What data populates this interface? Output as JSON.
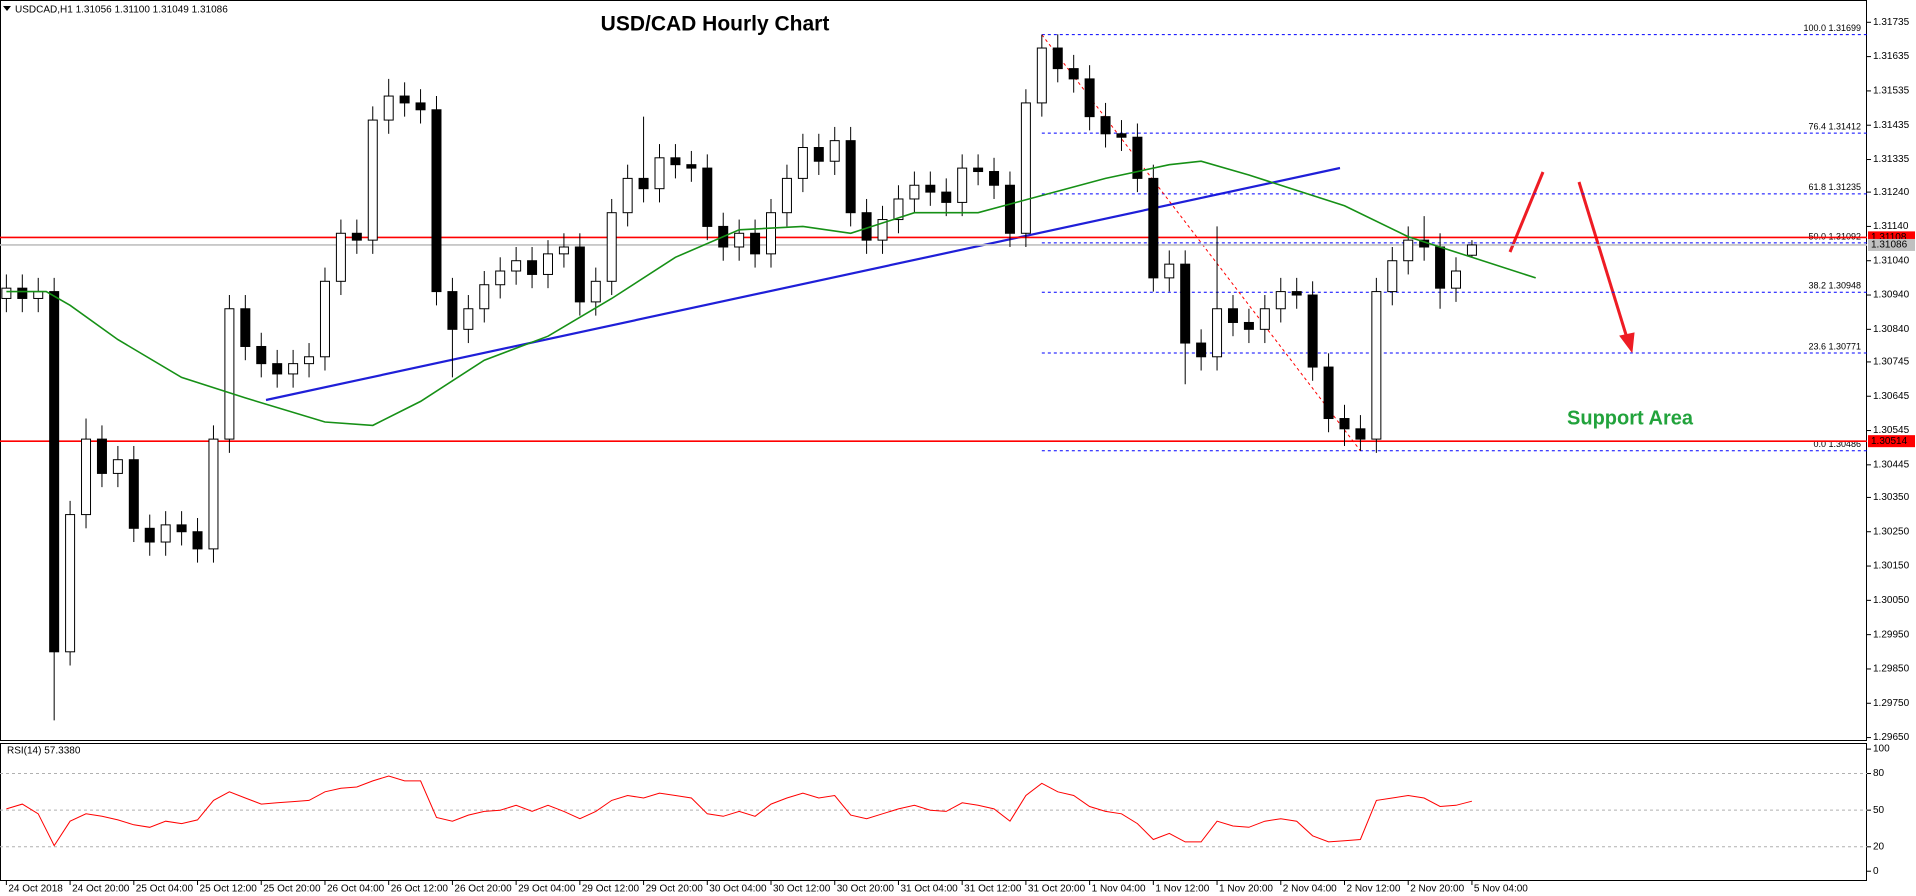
{
  "chart_data": [
    {
      "type": "candlestick",
      "title": "USD/CAD Hourly Chart",
      "symbol_info": "USDCAD,H1  1.31056 1.31100 1.31049 1.31086",
      "annotation": "Support Area",
      "candle_colors": {
        "up": "#ffffff",
        "down": "#000000",
        "outline": "#000000"
      },
      "xlim": [
        -0.8,
        233.6
      ],
      "ylim": [
        1.2964,
        1.318
      ],
      "x": [
        0,
        2,
        4,
        6,
        8,
        10,
        12,
        14,
        16,
        18,
        20,
        22,
        24,
        26,
        28,
        30,
        32,
        34,
        36,
        38,
        40,
        42,
        44,
        46,
        48,
        50,
        52,
        54,
        56,
        58,
        60,
        62,
        64,
        66,
        68,
        70,
        72,
        74,
        76,
        78,
        80,
        82,
        84,
        86,
        88,
        90,
        92,
        94,
        96,
        98,
        100,
        102,
        104,
        106,
        108,
        110,
        112,
        114,
        116,
        118,
        120,
        122,
        124,
        126,
        128,
        130,
        132,
        134,
        136,
        138,
        140,
        142,
        144,
        146,
        148,
        150,
        152,
        154,
        156,
        158,
        160,
        162,
        164,
        166,
        168,
        170,
        172,
        174,
        176,
        178,
        180,
        182,
        184
      ],
      "open": [
        1.3093,
        1.3096,
        1.3093,
        1.3095,
        1.299,
        1.303,
        1.3052,
        1.3042,
        1.3046,
        1.3026,
        1.3022,
        1.3027,
        1.3025,
        1.302,
        1.3052,
        1.309,
        1.3079,
        1.3074,
        1.3071,
        1.3074,
        1.3076,
        1.3098,
        1.3112,
        1.311,
        1.3145,
        1.3152,
        1.315,
        1.3148,
        1.3095,
        1.3084,
        1.309,
        1.3097,
        1.3101,
        1.3104,
        1.31,
        1.3106,
        1.3108,
        1.3092,
        1.3098,
        1.3118,
        1.3128,
        1.3125,
        1.3134,
        1.3132,
        1.3131,
        1.3114,
        1.3108,
        1.3112,
        1.3106,
        1.3118,
        1.3128,
        1.3137,
        1.3133,
        1.3139,
        1.3118,
        1.311,
        1.3116,
        1.3122,
        1.3126,
        1.3124,
        1.3121,
        1.3131,
        1.313,
        1.3126,
        1.3112,
        1.315,
        1.3166,
        1.316,
        1.3157,
        1.3146,
        1.3141,
        1.314,
        1.3128,
        1.3099,
        1.3103,
        1.308,
        1.3076,
        1.309,
        1.3086,
        1.3084,
        1.309,
        1.3095,
        1.3094,
        1.3073,
        1.3058,
        1.3055,
        1.3052,
        1.3095,
        1.3104,
        1.311,
        1.3108,
        1.3096,
        1.31056
      ],
      "high": [
        1.31,
        1.31,
        1.3099,
        1.3099,
        1.3034,
        1.3058,
        1.3056,
        1.305,
        1.305,
        1.303,
        1.3031,
        1.3031,
        1.3029,
        1.3056,
        1.3094,
        1.3094,
        1.3083,
        1.3078,
        1.3078,
        1.308,
        1.3102,
        1.3116,
        1.3116,
        1.3149,
        1.3157,
        1.3156,
        1.3154,
        1.3152,
        1.3099,
        1.3094,
        1.3101,
        1.3105,
        1.3108,
        1.3108,
        1.311,
        1.3112,
        1.3112,
        1.3102,
        1.3122,
        1.3132,
        1.3146,
        1.3138,
        1.3138,
        1.3136,
        1.3135,
        1.3118,
        1.3116,
        1.3116,
        1.3122,
        1.3132,
        1.3141,
        1.3141,
        1.3143,
        1.3143,
        1.3122,
        1.312,
        1.3126,
        1.313,
        1.313,
        1.3128,
        1.3135,
        1.3135,
        1.3134,
        1.313,
        1.3154,
        1.31699,
        1.317,
        1.3164,
        1.3161,
        1.315,
        1.3145,
        1.3144,
        1.3132,
        1.3107,
        1.3107,
        1.3084,
        1.3114,
        1.3094,
        1.309,
        1.3094,
        1.3099,
        1.3099,
        1.3098,
        1.3077,
        1.3062,
        1.3059,
        1.3099,
        1.3108,
        1.3114,
        1.3117,
        1.3112,
        1.3105,
        1.311
      ],
      "low": [
        1.3089,
        1.3089,
        1.3089,
        1.297,
        1.2986,
        1.3026,
        1.3038,
        1.3038,
        1.3022,
        1.3018,
        1.3018,
        1.3021,
        1.3016,
        1.3016,
        1.3048,
        1.3075,
        1.307,
        1.3067,
        1.3067,
        1.307,
        1.3072,
        1.3094,
        1.3106,
        1.3106,
        1.3141,
        1.3146,
        1.3144,
        1.3091,
        1.307,
        1.308,
        1.3086,
        1.3093,
        1.3097,
        1.3096,
        1.3096,
        1.3102,
        1.3088,
        1.3088,
        1.3094,
        1.3114,
        1.3121,
        1.3121,
        1.3128,
        1.3127,
        1.311,
        1.3104,
        1.3104,
        1.3102,
        1.3102,
        1.3114,
        1.3124,
        1.3129,
        1.3129,
        1.3114,
        1.3106,
        1.3106,
        1.3112,
        1.3118,
        1.312,
        1.3117,
        1.3117,
        1.3126,
        1.3122,
        1.3108,
        1.3108,
        1.3146,
        1.3156,
        1.3153,
        1.3142,
        1.3137,
        1.3136,
        1.3124,
        1.3095,
        1.3095,
        1.3068,
        1.3072,
        1.3072,
        1.3082,
        1.308,
        1.308,
        1.3086,
        1.309,
        1.3069,
        1.3054,
        1.305,
        1.30486,
        1.3048,
        1.3091,
        1.31,
        1.3104,
        1.309,
        1.3092,
        1.31049
      ],
      "close": [
        1.3096,
        1.3093,
        1.3095,
        1.299,
        1.303,
        1.3052,
        1.3042,
        1.3046,
        1.3026,
        1.3022,
        1.3027,
        1.3025,
        1.302,
        1.3052,
        1.309,
        1.3079,
        1.3074,
        1.3071,
        1.3074,
        1.3076,
        1.3098,
        1.3112,
        1.311,
        1.3145,
        1.3152,
        1.315,
        1.3148,
        1.3095,
        1.3084,
        1.309,
        1.3097,
        1.3101,
        1.3104,
        1.31,
        1.3106,
        1.3108,
        1.3092,
        1.3098,
        1.3118,
        1.3128,
        1.3125,
        1.3134,
        1.3132,
        1.3131,
        1.3114,
        1.3108,
        1.3112,
        1.3106,
        1.3118,
        1.3128,
        1.3137,
        1.3133,
        1.3139,
        1.3118,
        1.311,
        1.3116,
        1.3122,
        1.3126,
        1.3124,
        1.3121,
        1.3131,
        1.313,
        1.3126,
        1.3112,
        1.315,
        1.3166,
        1.316,
        1.3157,
        1.3146,
        1.3141,
        1.314,
        1.3128,
        1.3099,
        1.3103,
        1.308,
        1.3076,
        1.309,
        1.3086,
        1.3084,
        1.309,
        1.3095,
        1.3094,
        1.3073,
        1.3058,
        1.3055,
        1.3052,
        1.3095,
        1.3104,
        1.311,
        1.3108,
        1.3096,
        1.3101,
        1.31086
      ],
      "moving_average": {
        "color": "#169016",
        "x": [
          0,
          5,
          8,
          14,
          22,
          30,
          40,
          46,
          52,
          60,
          68,
          76,
          84,
          92,
          100,
          106,
          114,
          122,
          130,
          138,
          146,
          150,
          156,
          164,
          168,
          176,
          184,
          192
        ],
        "values": [
          1.3095,
          1.3095,
          1.3091,
          1.3081,
          1.307,
          1.3064,
          1.3057,
          1.3056,
          1.3063,
          1.3075,
          1.3082,
          1.3093,
          1.3105,
          1.3113,
          1.3114,
          1.3112,
          1.3118,
          1.3118,
          1.3123,
          1.3128,
          1.3132,
          1.3133,
          1.3129,
          1.3123,
          1.312,
          1.3111,
          1.3105,
          1.3099
        ]
      },
      "levels": [
        {
          "value": 1.31108,
          "color": "#ff0000"
        },
        {
          "value": 1.30514,
          "color": "#ff0000"
        },
        {
          "value": 1.31086,
          "color": "#c0c0c0"
        }
      ],
      "fibonacci": {
        "x": [
          130,
          170
        ],
        "color": "#0000ff",
        "levels": [
          {
            "label": "100.0 1.31699",
            "value": 1.31699
          },
          {
            "label": "76.4 1.31412",
            "value": 1.31412
          },
          {
            "label": "61.8 1.31235",
            "value": 1.31235
          },
          {
            "label": "50.0 1.31092",
            "value": 1.31092
          },
          {
            "label": "38.2 1.30948",
            "value": 1.30948
          },
          {
            "label": "23.6 1.30771",
            "value": 1.30771
          },
          {
            "label": "0.0 1.30486",
            "value": 1.30486
          }
        ]
      },
      "yticks": [
        1.31735,
        1.31635,
        1.31535,
        1.31435,
        1.31335,
        {
          "value": 1.3124,
          "label": "1.31240"
        },
        {
          "value": 1.3114,
          "label": "1.31140"
        },
        {
          "value": 1.3104,
          "label": "1.31040"
        },
        {
          "value": 1.3094,
          "label": "1.30940"
        },
        {
          "value": 1.3084,
          "label": "1.30840"
        },
        1.30745,
        1.30645,
        1.30545,
        1.30445,
        {
          "value": 1.3035,
          "label": "1.30350"
        },
        {
          "value": 1.3025,
          "label": "1.30250"
        },
        {
          "value": 1.3015,
          "label": "1.30150"
        },
        {
          "value": 1.3005,
          "label": "1.30050"
        },
        {
          "value": 1.2995,
          "label": "1.29950"
        },
        {
          "value": 1.2985,
          "label": "1.29850"
        },
        {
          "value": 1.2975,
          "label": "1.29750"
        },
        {
          "value": 1.2965,
          "label": "1.29650"
        }
      ],
      "xticks": [
        {
          "value": 0,
          "label": "24 Oct 2018"
        },
        {
          "value": 8,
          "label": "24 Oct 20:00"
        },
        {
          "value": 16,
          "label": "25 Oct 04:00"
        },
        {
          "value": 24,
          "label": "25 Oct 12:00"
        },
        {
          "value": 32,
          "label": "25 Oct 20:00"
        },
        {
          "value": 40,
          "label": "26 Oct 04:00"
        },
        {
          "value": 48,
          "label": "26 Oct 12:00"
        },
        {
          "value": 56,
          "label": "26 Oct 20:00"
        },
        {
          "value": 64,
          "label": "29 Oct 04:00"
        },
        {
          "value": 72,
          "label": "29 Oct 12:00"
        },
        {
          "value": 80,
          "label": "29 Oct 20:00"
        },
        {
          "value": 88,
          "label": "30 Oct 04:00"
        },
        {
          "value": 96,
          "label": "30 Oct 12:00"
        },
        {
          "value": 104,
          "label": "30 Oct 20:00"
        },
        {
          "value": 112,
          "label": "31 Oct 04:00"
        },
        {
          "value": 120,
          "label": "31 Oct 12:00"
        },
        {
          "value": 128,
          "label": "31 Oct 20:00"
        },
        {
          "value": 136,
          "label": "1 Nov 04:00"
        },
        {
          "value": 144,
          "label": "1 Nov 12:00"
        },
        {
          "value": 152,
          "label": "1 Nov 20:00"
        },
        {
          "value": 160,
          "label": "2 Nov 04:00"
        },
        {
          "value": 168,
          "label": "2 Nov 12:00"
        },
        {
          "value": 176,
          "label": "2 Nov 20:00"
        },
        {
          "value": 184,
          "label": "5 Nov 04:00"
        }
      ]
    },
    {
      "type": "line",
      "title": "RSI(14) 57.3380",
      "color": "#ff0000",
      "ylim": [
        -8,
        105
      ],
      "yticks": [
        0,
        20,
        50,
        80,
        100
      ],
      "values": [
        51,
        55,
        47,
        21,
        41,
        47,
        45,
        42,
        38,
        36,
        41,
        39,
        42,
        58,
        65,
        60,
        55,
        56,
        57,
        58,
        65,
        68,
        69,
        74,
        78,
        74,
        74,
        44,
        41,
        46,
        49,
        50,
        54,
        49,
        54,
        49,
        43,
        49,
        58,
        62,
        60,
        64,
        62,
        60,
        47,
        45,
        49,
        45,
        55,
        60,
        64,
        60,
        62,
        46,
        43,
        47,
        51,
        54,
        50,
        49,
        56,
        54,
        51,
        41,
        62,
        72,
        65,
        62,
        53,
        49,
        47,
        39,
        26,
        31,
        24,
        24,
        41,
        37,
        36,
        41,
        43,
        41,
        29,
        24,
        25,
        26,
        58,
        60,
        62,
        60,
        53,
        54,
        57.338
      ]
    }
  ]
}
